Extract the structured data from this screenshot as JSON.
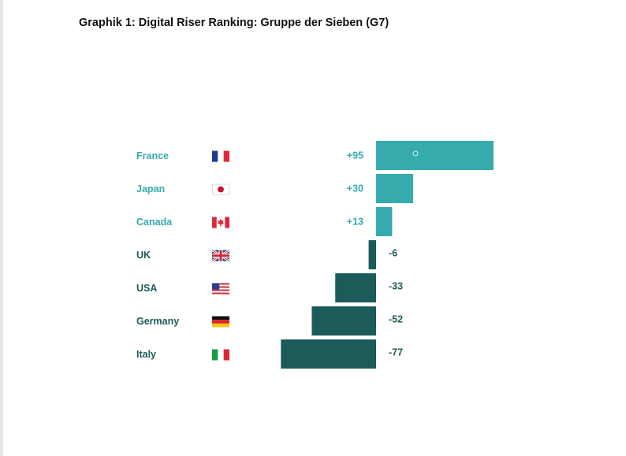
{
  "title": "Graphik 1: Digital Riser Ranking: Gruppe der Sieben (G7)",
  "colors": {
    "positive": "#35abad",
    "negative": "#1b5b59"
  },
  "chart_data": {
    "type": "bar",
    "orientation": "horizontal",
    "categories": [
      "France",
      "Japan",
      "Canada",
      "UK",
      "USA",
      "Germany",
      "Italy"
    ],
    "values": [
      95,
      30,
      13,
      -6,
      -33,
      -52,
      -77
    ],
    "value_labels": [
      "+95",
      "+30",
      "+13",
      "-6",
      "-33",
      "-52",
      "-77"
    ],
    "flags": [
      "france-flag-icon",
      "japan-flag-icon",
      "canada-flag-icon",
      "uk-flag-icon",
      "usa-flag-icon",
      "germany-flag-icon",
      "italy-flag-icon"
    ],
    "xlim": [
      -77,
      95
    ],
    "grid": false,
    "legend": "none"
  }
}
